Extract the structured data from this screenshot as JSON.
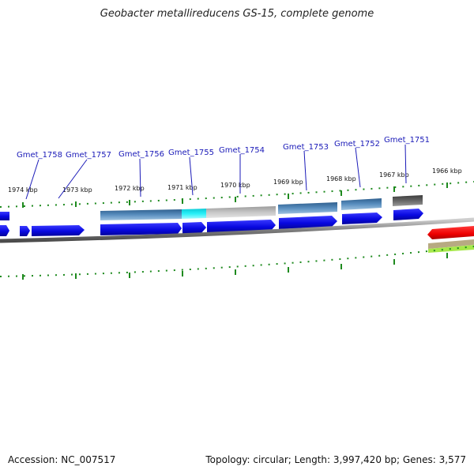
{
  "title": "Geobacter metallireducens GS-15, complete genome",
  "footer": {
    "accession": "Accession: NC_007517",
    "summary": "Topology: circular; Length: 3,997,420 bp; Genes: 3,577"
  },
  "genes": [
    {
      "id": "gene-1758",
      "label": "Gmet_1758"
    },
    {
      "id": "gene-1757",
      "label": "Gmet_1757"
    },
    {
      "id": "gene-1756",
      "label": "Gmet_1756"
    },
    {
      "id": "gene-1755",
      "label": "Gmet_1755"
    },
    {
      "id": "gene-1754",
      "label": "Gmet_1754"
    },
    {
      "id": "gene-1753",
      "label": "Gmet_1753"
    },
    {
      "id": "gene-1752",
      "label": "Gmet_1752"
    },
    {
      "id": "gene-1751",
      "label": "Gmet_1751"
    }
  ],
  "kbp_ticks": [
    {
      "label": "1974 kbp"
    },
    {
      "label": "1973 kbp"
    },
    {
      "label": "1972 kbp"
    },
    {
      "label": "1971 kbp"
    },
    {
      "label": "1970 kbp"
    },
    {
      "label": "1969 kbp"
    },
    {
      "label": "1968 kbp"
    },
    {
      "label": "1967 kbp"
    },
    {
      "label": "1966 kbp"
    }
  ],
  "colors": {
    "cds": "#0a0ae6",
    "gene_label": "#1a1ab8",
    "tick": "#1e8a1e",
    "ring": "#8c8c8c",
    "feature_steel": "#4a78a8",
    "feature_cyan": "#14e6f0",
    "feature_silver": "#bdbdbd",
    "feature_dark": "#555555",
    "rna_red": "#e80e0e",
    "rna_green": "#a6e84a",
    "rna_tan": "#b7aa82"
  }
}
